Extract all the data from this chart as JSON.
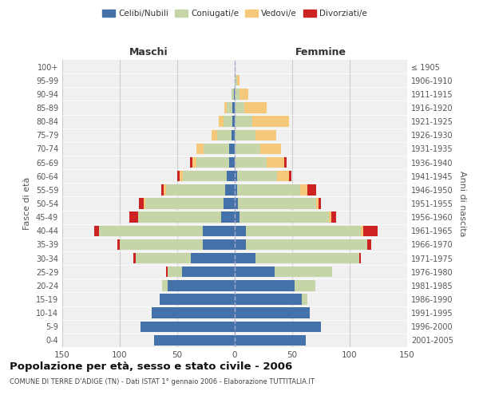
{
  "age_groups": [
    "0-4",
    "5-9",
    "10-14",
    "15-19",
    "20-24",
    "25-29",
    "30-34",
    "35-39",
    "40-44",
    "45-49",
    "50-54",
    "55-59",
    "60-64",
    "65-69",
    "70-74",
    "75-79",
    "80-84",
    "85-89",
    "90-94",
    "95-99",
    "100+"
  ],
  "birth_years": [
    "2001-2005",
    "1996-2000",
    "1991-1995",
    "1986-1990",
    "1981-1985",
    "1976-1980",
    "1971-1975",
    "1966-1970",
    "1961-1965",
    "1956-1960",
    "1951-1955",
    "1946-1950",
    "1941-1945",
    "1936-1940",
    "1931-1935",
    "1926-1930",
    "1921-1925",
    "1916-1920",
    "1911-1915",
    "1906-1910",
    "≤ 1905"
  ],
  "colors": {
    "celibe": "#4472a8",
    "coniugato": "#c5d5a8",
    "vedovo": "#f5c87a",
    "divorziato": "#cc2222"
  },
  "maschi": {
    "celibe": [
      70,
      82,
      72,
      65,
      58,
      46,
      38,
      28,
      28,
      12,
      10,
      8,
      7,
      5,
      5,
      3,
      2,
      2,
      1,
      0,
      0
    ],
    "coniugato": [
      0,
      0,
      0,
      0,
      5,
      12,
      48,
      72,
      90,
      72,
      68,
      52,
      38,
      28,
      22,
      12,
      8,
      5,
      2,
      0,
      0
    ],
    "vedovo": [
      0,
      0,
      0,
      0,
      0,
      0,
      0,
      0,
      0,
      0,
      1,
      2,
      3,
      4,
      6,
      5,
      4,
      2,
      0,
      0,
      0
    ],
    "divorziato": [
      0,
      0,
      0,
      0,
      0,
      2,
      2,
      2,
      4,
      8,
      4,
      2,
      2,
      2,
      0,
      0,
      0,
      0,
      0,
      0,
      0
    ]
  },
  "femmine": {
    "nubile": [
      62,
      75,
      65,
      58,
      52,
      35,
      18,
      10,
      10,
      4,
      3,
      2,
      2,
      0,
      0,
      0,
      0,
      0,
      0,
      0,
      0
    ],
    "coniugata": [
      0,
      0,
      0,
      5,
      18,
      50,
      90,
      105,
      100,
      78,
      68,
      55,
      35,
      28,
      22,
      18,
      15,
      8,
      4,
      2,
      0
    ],
    "vedova": [
      0,
      0,
      0,
      0,
      0,
      0,
      0,
      0,
      2,
      2,
      2,
      6,
      10,
      15,
      18,
      18,
      32,
      20,
      8,
      2,
      0
    ],
    "divorziata": [
      0,
      0,
      0,
      0,
      0,
      0,
      2,
      4,
      12,
      4,
      2,
      8,
      2,
      2,
      0,
      0,
      0,
      0,
      0,
      0,
      0
    ]
  },
  "xlim": 150,
  "title": "Popolazione per età, sesso e stato civile - 2006",
  "subtitle": "COMUNE DI TERRE D'ADIGE (TN) - Dati ISTAT 1° gennaio 2006 - Elaborazione TUTTITALIA.IT",
  "ylabel": "Fasce di età",
  "ylabel_right": "Anni di nascita",
  "xlabel_maschi": "Maschi",
  "xlabel_femmine": "Femmine",
  "bg_color": "#f0f0f0",
  "grid_color": "#cccccc"
}
